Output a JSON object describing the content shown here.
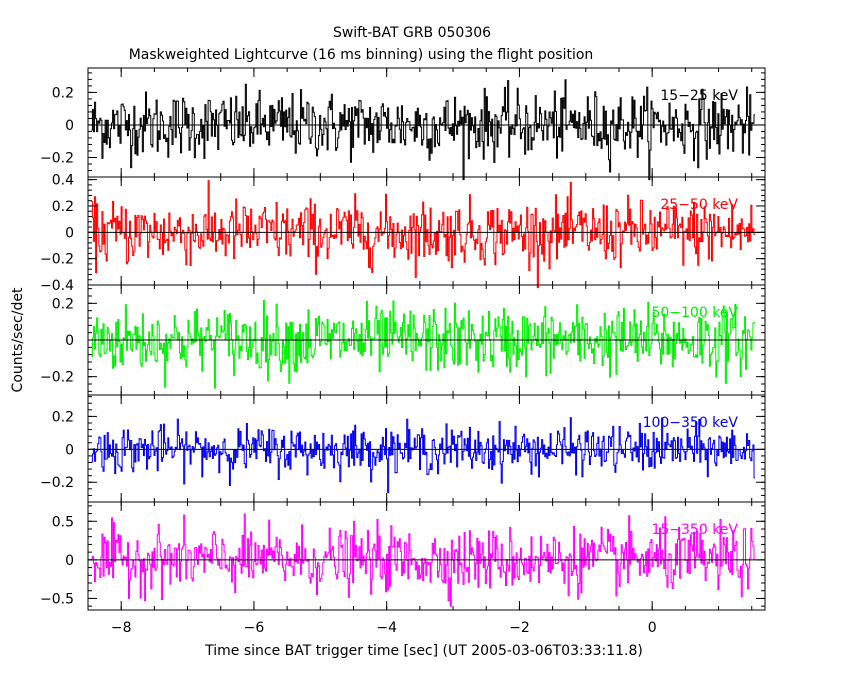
{
  "chart_data": {
    "type": "line",
    "title": "Swift-BAT GRB 050306",
    "subtitle": "Maskweighted Lightcurve (16 ms binning) using the flight position",
    "xlabel": "Time since BAT trigger time [sec] (UT 2005-03-06T03:33:11.8)",
    "ylabel": "Counts/sec/det",
    "xlim": [
      -8.5,
      1.7
    ],
    "x_ticks": [
      -8,
      -6,
      -4,
      -2,
      0
    ],
    "x_tick_labels": [
      "−8",
      "−6",
      "−4",
      "−2",
      "0"
    ],
    "bin_size_sec": 0.016,
    "data_range_sec": [
      -8.45,
      1.55
    ],
    "panels": [
      {
        "name": "15-25 keV",
        "label": "15−25 keV",
        "color": "#000000",
        "ylim": [
          -0.32,
          0.35
        ],
        "y_ticks": [
          -0.2,
          0,
          0.2
        ],
        "y_tick_labels": [
          "−0.2",
          "0",
          "0.2"
        ],
        "noise_amplitude": 0.1,
        "values": []
      },
      {
        "name": "25-50 keV",
        "label": "25−50 keV",
        "color": "#ff0000",
        "ylim": [
          -0.4,
          0.42
        ],
        "y_ticks": [
          -0.4,
          -0.2,
          0,
          0.2,
          0.4
        ],
        "y_tick_labels": [
          "−0.4",
          "−0.2",
          "0",
          "0.2",
          "0.4"
        ],
        "noise_amplitude": 0.12,
        "values": []
      },
      {
        "name": "50-100 keV",
        "label": "50−100 keV",
        "color": "#00ee00",
        "ylim": [
          -0.3,
          0.3
        ],
        "y_ticks": [
          -0.2,
          0,
          0.2
        ],
        "y_tick_labels": [
          "−0.2",
          "0",
          "0.2"
        ],
        "noise_amplitude": 0.09,
        "values": []
      },
      {
        "name": "100-350 keV",
        "label": "100−350 keV",
        "color": "#0000ee",
        "ylim": [
          -0.32,
          0.33
        ],
        "y_ticks": [
          -0.2,
          0,
          0.2
        ],
        "y_tick_labels": [
          "−0.2",
          "0",
          "0.2"
        ],
        "noise_amplitude": 0.07,
        "values": []
      },
      {
        "name": "15-350 keV",
        "label": "15−350 keV",
        "color": "#ff00ff",
        "ylim": [
          -0.65,
          0.75
        ],
        "y_ticks": [
          -0.5,
          0,
          0.5
        ],
        "y_tick_labels": [
          "−0.5",
          "0",
          "0.5"
        ],
        "noise_amplitude": 0.2,
        "values": []
      }
    ]
  }
}
